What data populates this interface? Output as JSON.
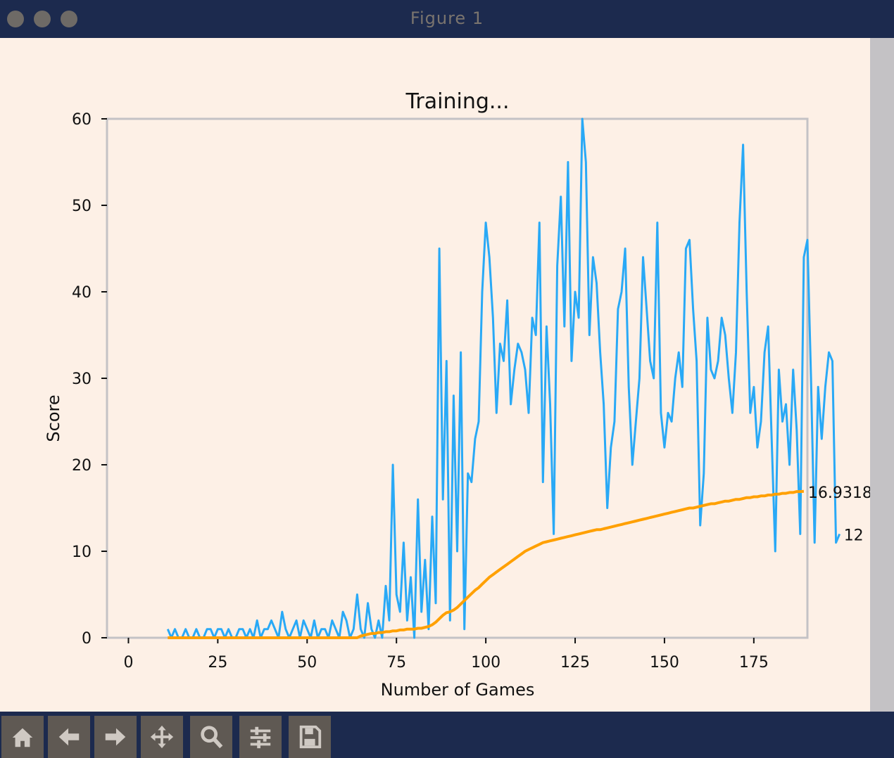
{
  "window": {
    "title": "Figure 1"
  },
  "toolbar": {
    "buttons": [
      {
        "name": "home-button",
        "icon": "home-icon"
      },
      {
        "name": "back-button",
        "icon": "back-arrow-icon"
      },
      {
        "name": "forward-button",
        "icon": "forward-arrow-icon"
      },
      {
        "name": "pan-button",
        "icon": "move-icon"
      },
      {
        "name": "zoom-button",
        "icon": "zoom-icon"
      },
      {
        "name": "configure-subplots-button",
        "icon": "sliders-icon"
      },
      {
        "name": "save-button",
        "icon": "save-icon"
      }
    ]
  },
  "colors": {
    "score": "#29a9f6",
    "mean": "#ffa000",
    "titlebar": "#1c2a4e",
    "background": "#fdf0e6"
  },
  "chart_data": {
    "type": "line",
    "title": "Training...",
    "xlabel": "Number of Games",
    "ylabel": "Score",
    "xlim": [
      -6,
      190
    ],
    "ylim": [
      0,
      60
    ],
    "xticks": [
      0,
      25,
      50,
      75,
      100,
      125,
      150,
      175
    ],
    "xtick_labels": [
      "0",
      "25",
      "50",
      "75",
      "100",
      "125",
      "150",
      "175"
    ],
    "yticks": [
      0,
      10,
      20,
      30,
      40,
      50,
      60
    ],
    "ytick_labels": [
      "0",
      "10",
      "20",
      "30",
      "40",
      "50",
      "60"
    ],
    "grid": false,
    "series": [
      {
        "role": "score",
        "start_x": 11,
        "values": [
          1,
          0,
          1,
          0,
          0,
          1,
          0,
          0,
          1,
          0,
          0,
          1,
          1,
          0,
          1,
          1,
          0,
          1,
          0,
          0,
          1,
          1,
          0,
          1,
          0,
          2,
          0,
          1,
          1,
          2,
          1,
          0,
          3,
          1,
          0,
          1,
          2,
          0,
          2,
          1,
          0,
          2,
          0,
          1,
          1,
          0,
          2,
          1,
          0,
          3,
          2,
          0,
          1,
          5,
          1,
          0,
          4,
          1,
          0,
          2,
          0,
          6,
          2,
          20,
          5,
          3,
          11,
          2,
          7,
          0,
          16,
          3,
          9,
          1,
          14,
          4,
          45,
          16,
          32,
          2,
          28,
          10,
          33,
          1,
          19,
          18,
          23,
          25,
          40,
          48,
          44,
          37,
          26,
          34,
          32,
          39,
          27,
          31,
          34,
          33,
          31,
          26,
          37,
          35,
          48,
          18,
          36,
          27,
          12,
          43,
          51,
          36,
          55,
          32,
          40,
          37,
          60,
          55,
          35,
          44,
          41,
          33,
          27,
          15,
          22,
          25,
          38,
          40,
          45,
          29,
          20,
          25,
          30,
          44,
          38,
          32,
          30,
          48,
          26,
          22,
          26,
          25,
          30,
          33,
          29,
          45,
          46,
          38,
          32,
          13,
          19,
          37,
          31,
          30,
          32,
          37,
          35,
          30,
          26,
          33,
          48,
          57,
          40,
          26,
          29,
          22,
          25,
          33,
          36,
          23,
          10,
          31,
          25,
          27,
          20,
          31,
          24,
          12,
          44,
          46,
          30,
          11,
          29,
          23,
          29,
          33,
          32,
          11,
          12
        ],
        "end_label": "12"
      },
      {
        "role": "mean",
        "start_x": 11,
        "values": [
          0,
          0,
          0,
          0,
          0,
          0,
          0,
          0,
          0,
          0,
          0,
          0,
          0,
          0,
          0,
          0,
          0,
          0,
          0,
          0,
          0,
          0,
          0,
          0,
          0,
          0,
          0,
          0,
          0,
          0,
          0,
          0,
          0,
          0,
          0,
          0,
          0,
          0,
          0,
          0,
          0,
          0,
          0,
          0,
          0,
          0,
          0,
          0,
          0,
          0,
          0,
          0,
          0,
          0,
          0.2,
          0.3,
          0.4,
          0.5,
          0.5,
          0.6,
          0.6,
          0.7,
          0.7,
          0.8,
          0.8,
          0.9,
          0.9,
          1.0,
          1.0,
          1.0,
          1.1,
          1.1,
          1.2,
          1.3,
          1.5,
          1.8,
          2.2,
          2.6,
          2.9,
          3.0,
          3.2,
          3.5,
          3.9,
          4.3,
          4.7,
          5.1,
          5.5,
          5.8,
          6.2,
          6.6,
          7.0,
          7.3,
          7.6,
          7.9,
          8.2,
          8.5,
          8.8,
          9.1,
          9.4,
          9.7,
          10.0,
          10.2,
          10.4,
          10.6,
          10.8,
          11.0,
          11.1,
          11.2,
          11.3,
          11.4,
          11.5,
          11.6,
          11.7,
          11.8,
          11.9,
          12.0,
          12.1,
          12.2,
          12.3,
          12.4,
          12.5,
          12.5,
          12.6,
          12.7,
          12.8,
          12.9,
          13.0,
          13.1,
          13.2,
          13.3,
          13.4,
          13.5,
          13.6,
          13.7,
          13.8,
          13.9,
          14.0,
          14.1,
          14.2,
          14.3,
          14.4,
          14.5,
          14.6,
          14.7,
          14.8,
          14.9,
          15.0,
          15.0,
          15.1,
          15.2,
          15.3,
          15.4,
          15.5,
          15.5,
          15.6,
          15.7,
          15.8,
          15.8,
          15.9,
          16.0,
          16.0,
          16.1,
          16.2,
          16.2,
          16.3,
          16.3,
          16.4,
          16.4,
          16.5,
          16.5,
          16.6,
          16.6,
          16.7,
          16.7,
          16.8,
          16.8,
          16.9,
          16.9,
          16.93
        ],
        "end_label": "16.9318181818"
      }
    ]
  }
}
